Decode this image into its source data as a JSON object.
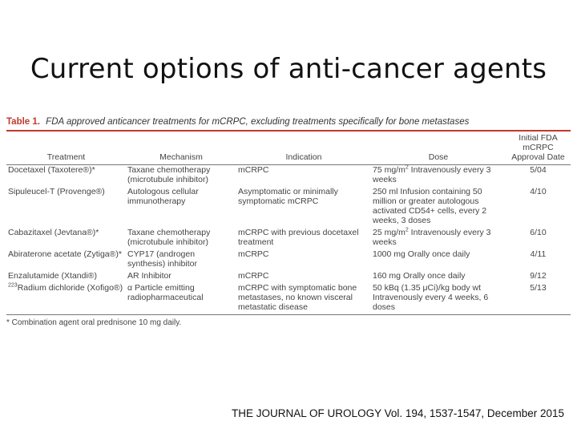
{
  "title": "Current options of anti-cancer agents",
  "table": {
    "label": "Table 1.",
    "caption": "FDA approved anticancer treatments for mCRPC, excluding treatments specifically for bone metastases",
    "headers": {
      "treatment": "Treatment",
      "mechanism": "Mechanism",
      "indication": "Indication",
      "dose": "Dose",
      "date_line1": "Initial FDA mCRPC",
      "date_line2": "Approval Date"
    },
    "rows": [
      {
        "treatment": "Docetaxel (Taxotere®)*",
        "mechanism": "Taxane chemotherapy (microtubule inhibitor)",
        "indication": "mCRPC",
        "dose_value": "75 mg/m",
        "dose_sup": "2",
        "dose_rest": " Intravenously every 3 weeks",
        "date": "5/04"
      },
      {
        "treatment": "Sipuleucel-T (Provenge®)",
        "mechanism": "Autologous cellular immunotherapy",
        "indication": "Asymptomatic or minimally symptomatic mCRPC",
        "dose_value": "250 ml Infusion containing 50 million or greater autologous activated CD54+ cells, every 2 weeks, 3 doses",
        "dose_sup": "",
        "dose_rest": "",
        "date": "4/10"
      },
      {
        "treatment": "Cabazitaxel (Jevtana®)*",
        "mechanism": "Taxane chemotherapy (microtubule inhibitor)",
        "indication": "mCRPC with previous docetaxel treatment",
        "dose_value": "25 mg/m",
        "dose_sup": "2",
        "dose_rest": " Intravenously every 3 weeks",
        "date": "6/10"
      },
      {
        "treatment": "Abiraterone acetate (Zytiga®)*",
        "mechanism": "CYP17 (androgen synthesis) inhibitor",
        "indication": "mCRPC",
        "dose_value": "1000 mg Orally once daily",
        "dose_sup": "",
        "dose_rest": "",
        "date": "4/11"
      },
      {
        "treatment": "Enzalutamide (Xtandi®)",
        "mechanism": "AR Inhibitor",
        "indication": "mCRPC",
        "dose_value": "160 mg Orally once daily",
        "dose_sup": "",
        "dose_rest": "",
        "date": "9/12"
      },
      {
        "treatment_sup": "223",
        "treatment": "Radium dichloride (Xofigo®)",
        "mechanism": "α Particle emitting radiopharmaceutical",
        "indication": "mCRPC with symptomatic bone metastases, no known visceral metastatic disease",
        "dose_value": "50 kBq (1.35 μCi)/kg body wt Intravenously every 4 weeks, 6 doses",
        "dose_sup": "",
        "dose_rest": "",
        "date": "5/13"
      }
    ],
    "footnote": "* Combination agent oral prednisone 10 mg daily."
  },
  "citation": "THE JOURNAL OF UROLOGY Vol. 194, 1537-1547, December 2015"
}
